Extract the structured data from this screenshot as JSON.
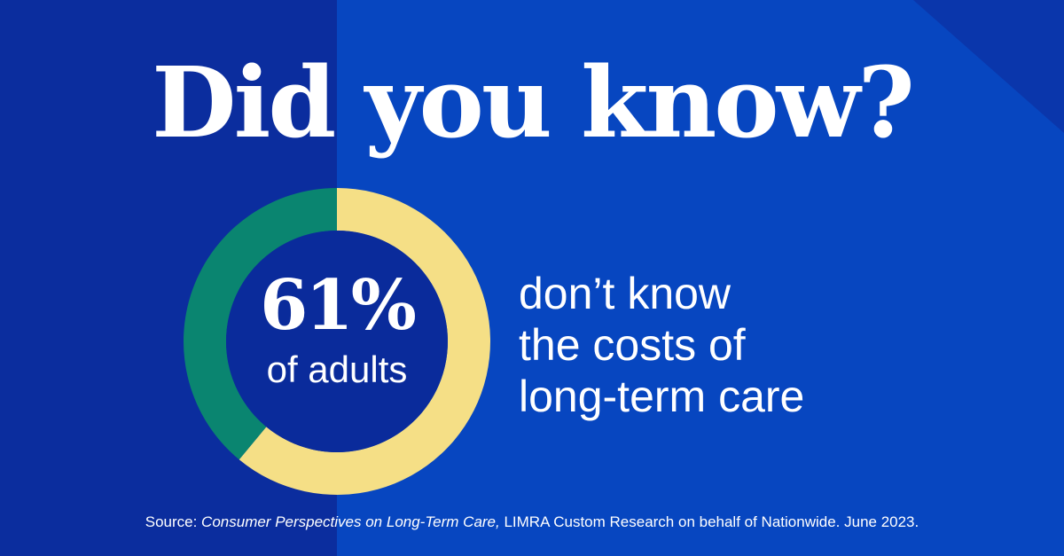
{
  "headline": "Did you know?",
  "stat": {
    "value": "61%",
    "label": "of adults"
  },
  "description": {
    "line1": "don’t know",
    "line2": "the costs of",
    "line3": "long-term care"
  },
  "source": {
    "prefix": "Source: ",
    "title": "Consumer Perspectives on Long-Term Care,",
    "rest": " LIMRA Custom Research on behalf of Nationwide. June 2023."
  },
  "colors": {
    "highlight": "#f5df86",
    "remainder": "#0a8570",
    "center": "#0a2b9b"
  },
  "chart_data": {
    "type": "pie",
    "style": "donut",
    "segments": [
      {
        "value": 61,
        "color": "#f5df86"
      },
      {
        "value": 39,
        "color": "#0a8570"
      }
    ],
    "center_value": "61%",
    "center_label": "of adults"
  }
}
